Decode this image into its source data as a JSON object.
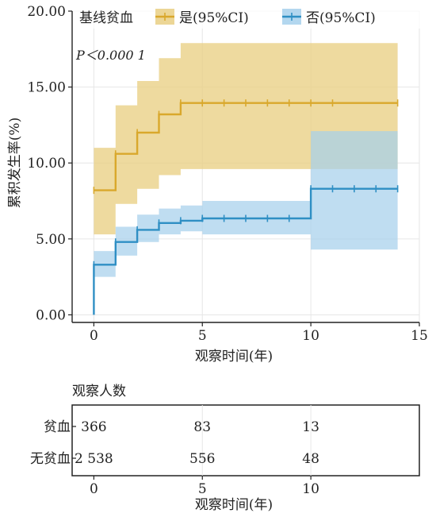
{
  "chart_data": [
    {
      "type": "line",
      "subtype": "kaplan-meier cumulative incidence (step) with 95% CI bands",
      "legend_title": "基线贫血",
      "legend_position": "top",
      "annotation": "P＜0.000 1",
      "xlabel": "观察时间(年)",
      "ylabel": "累积发生率(%)",
      "xlim": [
        -1,
        15
      ],
      "ylim": [
        -0.5,
        20.0
      ],
      "xticks": [
        "0",
        "5",
        "10",
        "15"
      ],
      "yticks": [
        "0.00",
        "5.00",
        "10.00",
        "15.00",
        "20.00"
      ],
      "grid": true,
      "series": [
        {
          "name": "是(95%CI)",
          "color": "#d9a82c",
          "band_color": "#e9cf84",
          "x": [
            0,
            1,
            2,
            3,
            4,
            14
          ],
          "y": [
            8.2,
            10.6,
            12.0,
            13.2,
            13.95,
            13.95
          ],
          "ci_lower": [
            5.3,
            7.3,
            8.3,
            9.2,
            9.6,
            9.6
          ],
          "ci_upper": [
            11.0,
            13.8,
            15.4,
            16.9,
            17.9,
            17.9
          ],
          "censor_x": [
            0,
            1,
            2,
            3,
            4,
            5,
            6,
            7,
            8,
            9,
            10,
            11,
            14
          ]
        },
        {
          "name": "否(95%CI)",
          "color": "#2f8fc4",
          "band_color": "#a6d0ec",
          "x": [
            0,
            0,
            1,
            2,
            3,
            4,
            5,
            10,
            14
          ],
          "y": [
            0.0,
            3.3,
            4.8,
            5.6,
            6.05,
            6.2,
            6.35,
            8.3,
            8.3
          ],
          "ci_lower": [
            0.0,
            2.5,
            3.9,
            4.8,
            5.3,
            5.5,
            5.3,
            4.3,
            4.3
          ],
          "ci_upper": [
            0.0,
            4.2,
            5.8,
            6.6,
            7.0,
            7.2,
            7.5,
            12.1,
            12.1
          ],
          "censor_x": [
            0,
            1,
            2,
            3,
            4,
            5,
            6,
            7,
            8,
            9,
            10,
            11,
            12,
            13,
            14
          ]
        }
      ]
    },
    {
      "type": "table",
      "title": "观察人数",
      "xlabel": "观察时间(年)",
      "xticks": [
        "0",
        "5",
        "10"
      ],
      "rows": [
        {
          "label": "贫血",
          "values": [
            "366",
            "83",
            "13"
          ]
        },
        {
          "label": "无贫血",
          "values": [
            "2 538",
            "556",
            "48"
          ]
        }
      ]
    }
  ]
}
